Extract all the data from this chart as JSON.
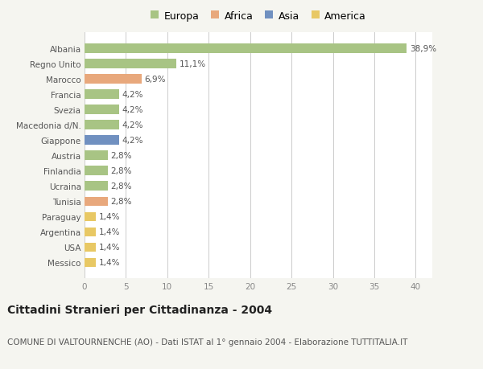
{
  "categories": [
    "Albania",
    "Regno Unito",
    "Marocco",
    "Francia",
    "Svezia",
    "Macedonia d/N.",
    "Giappone",
    "Austria",
    "Finlandia",
    "Ucraina",
    "Tunisia",
    "Paraguay",
    "Argentina",
    "USA",
    "Messico"
  ],
  "values": [
    38.9,
    11.1,
    6.9,
    4.2,
    4.2,
    4.2,
    4.2,
    2.8,
    2.8,
    2.8,
    2.8,
    1.4,
    1.4,
    1.4,
    1.4
  ],
  "labels": [
    "38,9%",
    "11,1%",
    "6,9%",
    "4,2%",
    "4,2%",
    "4,2%",
    "4,2%",
    "2,8%",
    "2,8%",
    "2,8%",
    "2,8%",
    "1,4%",
    "1,4%",
    "1,4%",
    "1,4%"
  ],
  "colors": [
    "#a8c484",
    "#a8c484",
    "#e8a87c",
    "#a8c484",
    "#a8c484",
    "#a8c484",
    "#7090c0",
    "#a8c484",
    "#a8c484",
    "#a8c484",
    "#e8a87c",
    "#e8c864",
    "#e8c864",
    "#e8c864",
    "#e8c864"
  ],
  "continent_colors": {
    "Europa": "#a8c484",
    "Africa": "#e8a87c",
    "Asia": "#7090c0",
    "America": "#e8c864"
  },
  "legend_labels": [
    "Europa",
    "Africa",
    "Asia",
    "America"
  ],
  "title": "Cittadini Stranieri per Cittadinanza - 2004",
  "subtitle": "COMUNE DI VALTOURNENCHE (AO) - Dati ISTAT al 1° gennaio 2004 - Elaborazione TUTTITALIA.IT",
  "xlim": [
    0,
    42
  ],
  "xticks": [
    0,
    5,
    10,
    15,
    20,
    25,
    30,
    35,
    40
  ],
  "background_color": "#f5f5f0",
  "bar_background": "#ffffff",
  "grid_color": "#cccccc",
  "title_fontsize": 10,
  "subtitle_fontsize": 7.5,
  "label_fontsize": 7.5,
  "tick_fontsize": 7.5,
  "legend_fontsize": 9
}
